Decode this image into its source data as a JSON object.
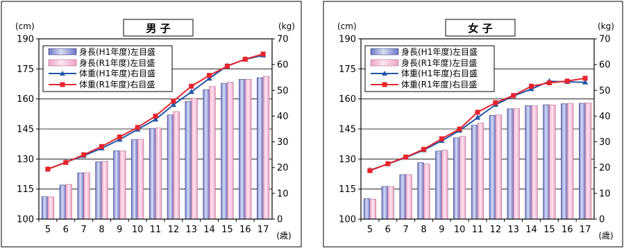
{
  "colors": {
    "bar_h1": "#8e9ad8",
    "bar_r1": "#f7c0dc",
    "line_h1": "#1f56a6",
    "line_r1": "#e8242c"
  },
  "chart_data": [
    {
      "type": "bar",
      "title": "男 子",
      "ylabel_left": "(cm)",
      "ylabel_right": "(kg)",
      "xunit": "(歳)",
      "categories": [
        "5",
        "6",
        "7",
        "8",
        "9",
        "10",
        "11",
        "12",
        "13",
        "14",
        "15",
        "16",
        "17"
      ],
      "ylim_left": [
        100,
        190
      ],
      "yticks_left": [
        100,
        115,
        130,
        145,
        160,
        175,
        190
      ],
      "ylim_right": [
        0,
        70
      ],
      "yticks_right": [
        0,
        10,
        20,
        30,
        40,
        50,
        60,
        70
      ],
      "grid": true,
      "legend_position": "top-left",
      "series": [
        {
          "name": "身長(H1年度)左目盛",
          "kind": "bar",
          "axis": "left",
          "color_key": "bar_h1",
          "values": [
            111.2,
            117.0,
            123.1,
            128.6,
            134.1,
            139.7,
            145.3,
            152.0,
            158.8,
            164.6,
            167.8,
            169.8,
            170.6
          ]
        },
        {
          "name": "身長(R1年度)左目盛",
          "kind": "bar",
          "axis": "left",
          "color_key": "bar_r1",
          "values": [
            111.1,
            117.3,
            123.2,
            128.9,
            134.1,
            139.9,
            145.5,
            153.7,
            160.4,
            166.2,
            168.4,
            169.8,
            171.3
          ]
        },
        {
          "name": "体重(H1年度)右目盛",
          "kind": "line",
          "axis": "right",
          "color_key": "line_h1",
          "marker": "triangle",
          "values": [
            19.4,
            22.1,
            24.6,
            27.5,
            30.9,
            34.8,
            38.7,
            44.4,
            49.4,
            54.6,
            59.5,
            62.0,
            63.6
          ]
        },
        {
          "name": "体重(R1年度)右目盛",
          "kind": "line",
          "axis": "right",
          "color_key": "line_r1",
          "marker": "square",
          "values": [
            19.4,
            22.0,
            25.0,
            28.2,
            31.9,
            35.6,
            40.0,
            45.8,
            51.6,
            55.8,
            59.4,
            62.1,
            64.1
          ]
        }
      ]
    },
    {
      "type": "bar",
      "title": "女 子",
      "ylabel_left": "(cm)",
      "ylabel_right": "(kg)",
      "xunit": "(歳)",
      "categories": [
        "5",
        "6",
        "7",
        "8",
        "9",
        "10",
        "11",
        "12",
        "13",
        "14",
        "15",
        "16",
        "17"
      ],
      "ylim_left": [
        100,
        190
      ],
      "yticks_left": [
        100,
        115,
        130,
        145,
        160,
        175,
        190
      ],
      "ylim_right": [
        0,
        70
      ],
      "yticks_right": [
        0,
        10,
        20,
        30,
        40,
        50,
        60,
        70
      ],
      "grid": true,
      "legend_position": "top-left",
      "series": [
        {
          "name": "身長(H1年度)左目盛",
          "kind": "bar",
          "axis": "left",
          "color_key": "bar_h1",
          "values": [
            110.2,
            116.3,
            122.2,
            128.2,
            134.0,
            140.6,
            146.9,
            151.8,
            155.1,
            156.7,
            157.1,
            157.6,
            157.8
          ]
        },
        {
          "name": "身長(R1年度)左目盛",
          "kind": "bar",
          "axis": "left",
          "color_key": "bar_r1",
          "values": [
            110.0,
            116.3,
            122.2,
            127.5,
            134.4,
            141.3,
            147.9,
            152.0,
            155.1,
            156.7,
            157.0,
            157.8,
            158.0
          ]
        },
        {
          "name": "体重(H1年度)右目盛",
          "kind": "line",
          "axis": "right",
          "color_key": "line_h1",
          "marker": "triangle",
          "values": [
            19.0,
            21.4,
            23.9,
            26.8,
            30.4,
            34.4,
            39.4,
            44.4,
            47.8,
            50.5,
            53.5,
            53.3,
            53.1
          ]
        },
        {
          "name": "体重(R1年度)右目盛",
          "kind": "line",
          "axis": "right",
          "color_key": "line_r1",
          "marker": "square",
          "values": [
            18.8,
            21.5,
            24.1,
            27.1,
            31.2,
            35.0,
            41.5,
            45.2,
            48.0,
            51.6,
            52.9,
            53.6,
            54.7
          ]
        }
      ]
    }
  ]
}
